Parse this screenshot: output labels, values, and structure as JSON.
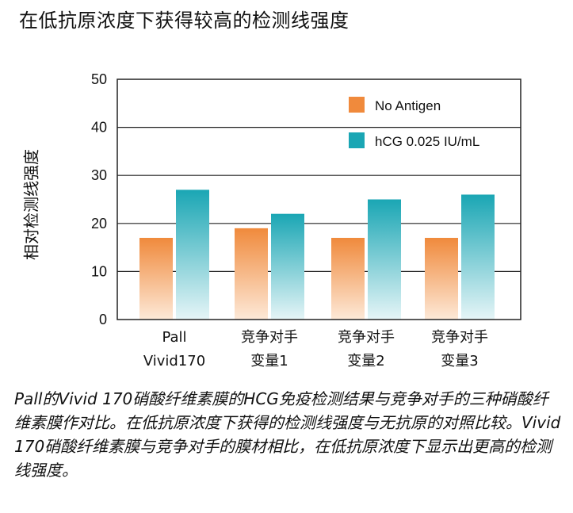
{
  "chart_data": {
    "type": "bar",
    "title": "在低抗原浓度下获得较高的检测线强度",
    "ylabel": "相对检测线强度",
    "xlabel": "",
    "ylim": [
      0,
      50
    ],
    "yticks": [
      0,
      10,
      20,
      30,
      40,
      50
    ],
    "grid": true,
    "legend_position": "top-right",
    "categories": [
      [
        "Pall",
        "Vivid170"
      ],
      [
        "竞争对手",
        "变量1"
      ],
      [
        "竞争对手",
        "变量2"
      ],
      [
        "竞争对手",
        "变量3"
      ]
    ],
    "series": [
      {
        "name": "No Antigen",
        "color": "#f08a3c",
        "values": [
          17,
          19,
          17,
          17
        ]
      },
      {
        "name": "hCG 0.025 IU/mL",
        "color": "#1aa6b4",
        "values": [
          27,
          22,
          25,
          26
        ]
      }
    ]
  },
  "caption": "Pall的Vivid 170硝酸纤维素膜的HCG免疫检测结果与竞争对手的三种硝酸纤维素膜作对比。在低抗原浓度下获得的检测线强度与无抗原的对照比较。Vivid 170硝酸纤维素膜与竞争对手的膜材相比，在低抗原浓度下显示出更高的检测线强度。"
}
